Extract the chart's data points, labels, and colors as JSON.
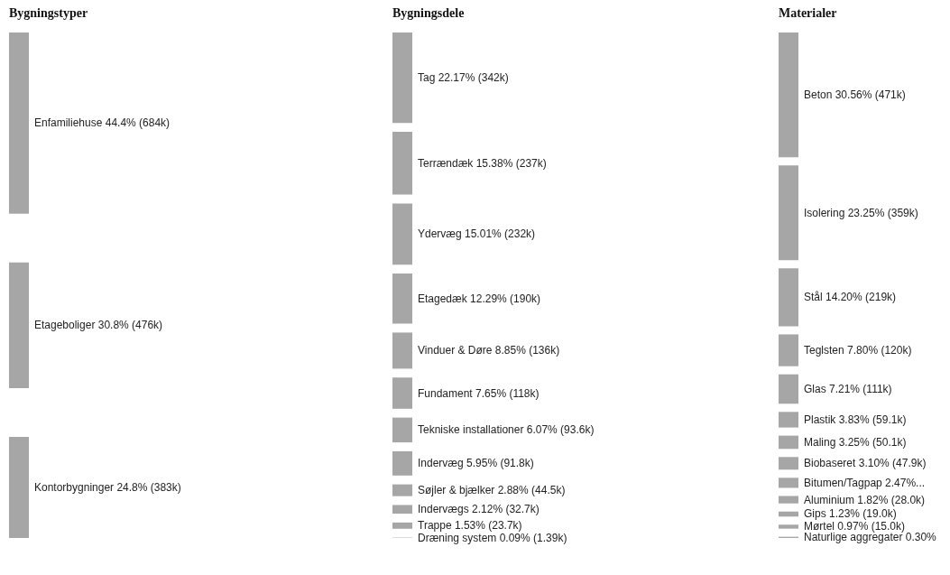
{
  "chart_data": [
    {
      "type": "other",
      "title": "Bygningstyper",
      "color": "#a6a6a6",
      "categories": [
        "Enfamiliehuse",
        "Etageboliger",
        "Kontorbygninger"
      ],
      "values": [
        44.4,
        30.8,
        24.8
      ],
      "value_labels": [
        "44.4% (684k)",
        "30.8% (476k)",
        "24.8% (383k)"
      ]
    },
    {
      "type": "other",
      "title": "Bygningsdele",
      "color": "#a6a6a6",
      "categories": [
        "Tag",
        "Terrændæk",
        "Ydervæg",
        "Etagedæk",
        "Vinduer & Døre",
        "Fundament",
        "Tekniske installationer",
        "Indervæg",
        "Søjler & bjælker",
        "Indervægs",
        "Trappe",
        "Dræning system"
      ],
      "values": [
        22.17,
        15.38,
        15.01,
        12.29,
        8.85,
        7.65,
        6.07,
        5.95,
        2.88,
        2.12,
        1.53,
        0.09
      ],
      "value_labels": [
        "22.17% (342k)",
        "15.38% (237k)",
        "15.01% (232k)",
        "12.29% (190k)",
        "8.85% (136k)",
        "7.65% (118k)",
        "6.07% (93.6k)",
        "5.95% (91.8k)",
        "2.88% (44.5k)",
        "2.12% (32.7k)",
        "1.53% (23.7k)",
        "0.09% (1.39k)"
      ]
    },
    {
      "type": "other",
      "title": "Materialer",
      "color": "#a6a6a6",
      "categories": [
        "Beton",
        "Isolering",
        "Stål",
        "Teglsten",
        "Glas",
        "Plastik",
        "Maling",
        "Biobaseret",
        "Bitumen/Tagpap",
        "Aluminium",
        "Gips",
        "Mørtel",
        "Naturlige aggregater"
      ],
      "values": [
        30.56,
        23.25,
        14.2,
        7.8,
        7.21,
        3.83,
        3.25,
        3.1,
        2.47,
        1.82,
        1.23,
        0.97,
        0.3
      ],
      "value_labels": [
        "30.56% (471k)",
        "23.25% (359k)",
        "14.20% (219k)",
        "7.80% (120k)",
        "7.21% (111k)",
        "3.83% (59.1k)",
        "3.25% (50.1k)",
        "3.10% (47.9k)",
        "2.47%...",
        "1.82% (28.0k)",
        "1.23% (19.0k)",
        "0.97% (15.0k)",
        "0.30%"
      ]
    }
  ]
}
